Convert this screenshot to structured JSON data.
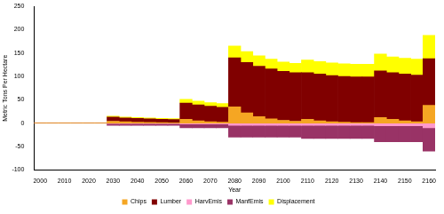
{
  "chart_data": {
    "type": "bar",
    "stacked": true,
    "grid": false,
    "legend": "bottom",
    "x_label": "Year",
    "y_label": "Metric Tons Per Hectare",
    "categories": [
      2000,
      null,
      2010,
      null,
      2020,
      null,
      2030,
      null,
      2040,
      null,
      2050,
      null,
      2060,
      null,
      2070,
      null,
      2080,
      null,
      2090,
      null,
      2100,
      null,
      2110,
      null,
      2120,
      null,
      2130,
      null,
      2140,
      null,
      2150,
      null,
      2160
    ],
    "ylim": [
      -100,
      250
    ],
    "yticks": [
      -100,
      -50,
      0,
      50,
      100,
      150,
      200,
      250
    ],
    "series": [
      {
        "name": "Chips",
        "color": "#f5a623",
        "values": [
          0,
          0,
          0,
          0,
          0,
          0,
          4,
          3,
          2,
          1.5,
          1,
          0.5,
          8,
          5,
          3,
          2,
          35,
          22,
          14,
          9,
          6,
          4,
          8,
          5,
          3,
          2,
          1,
          1,
          12,
          8,
          5,
          3,
          38
        ]
      },
      {
        "name": "Lumber",
        "color": "#800000",
        "values": [
          0,
          0,
          0,
          0,
          0,
          0,
          9,
          8,
          8,
          7.5,
          7,
          7,
          35,
          34,
          33,
          32,
          105,
          108,
          108,
          107,
          105,
          104,
          100,
          100,
          99,
          98,
          98,
          98,
          100,
          100,
          100,
          100,
          100
        ]
      },
      {
        "name": "HarvEmis",
        "color": "#ff99cc",
        "values": [
          0,
          0,
          0,
          0,
          0,
          0,
          -1,
          -1,
          -1,
          -1,
          -1,
          -1,
          -2,
          -2,
          -2,
          -2,
          -5,
          -5,
          -5,
          -5,
          -5,
          -5,
          -5,
          -5,
          -5,
          -5,
          -5,
          -5,
          -6,
          -6,
          -6,
          -6,
          -10
        ]
      },
      {
        "name": "ManfEmis",
        "color": "#993366",
        "values": [
          0,
          0,
          0,
          0,
          0,
          0,
          -4,
          -4,
          -4,
          -4,
          -4,
          -4,
          -8,
          -8,
          -8,
          -8,
          -25,
          -25,
          -25,
          -25,
          -25,
          -25,
          -28,
          -28,
          -28,
          -28,
          -28,
          -28,
          -34,
          -34,
          -34,
          -34,
          -50
        ]
      },
      {
        "name": "Displacement",
        "color": "#ffff00",
        "values": [
          0,
          0,
          0,
          0,
          0,
          0,
          2,
          2,
          2,
          2,
          2,
          2,
          8,
          8,
          8,
          8,
          25,
          23,
          22,
          21,
          20,
          20,
          27,
          27,
          27,
          27,
          27,
          27,
          36,
          34,
          34,
          34,
          50
        ]
      }
    ]
  }
}
